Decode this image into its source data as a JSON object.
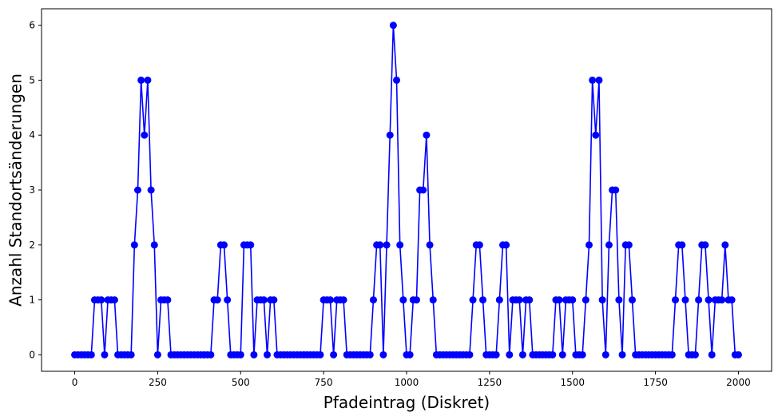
{
  "chart_data": {
    "type": "line",
    "x_label": "Pfadeintrag (Diskret)",
    "y_label": "Anzahl Standortsänderungen",
    "x": [
      0,
      10,
      20,
      30,
      40,
      50,
      60,
      70,
      80,
      90,
      100,
      110,
      120,
      130,
      140,
      150,
      160,
      170,
      180,
      190,
      200,
      210,
      220,
      230,
      240,
      250,
      260,
      270,
      280,
      290,
      300,
      310,
      320,
      330,
      340,
      350,
      360,
      370,
      380,
      390,
      400,
      410,
      420,
      430,
      440,
      450,
      460,
      470,
      480,
      490,
      500,
      510,
      520,
      530,
      540,
      550,
      560,
      570,
      580,
      590,
      600,
      610,
      620,
      630,
      640,
      650,
      660,
      670,
      680,
      690,
      700,
      710,
      720,
      730,
      740,
      750,
      760,
      770,
      780,
      790,
      800,
      810,
      820,
      830,
      840,
      850,
      860,
      870,
      880,
      890,
      900,
      910,
      920,
      930,
      940,
      950,
      960,
      970,
      980,
      990,
      1000,
      1010,
      1020,
      1030,
      1040,
      1050,
      1060,
      1070,
      1080,
      1090,
      1100,
      1110,
      1120,
      1130,
      1140,
      1150,
      1160,
      1170,
      1180,
      1190,
      1200,
      1210,
      1220,
      1230,
      1240,
      1250,
      1260,
      1270,
      1280,
      1290,
      1300,
      1310,
      1320,
      1330,
      1340,
      1350,
      1360,
      1370,
      1380,
      1390,
      1400,
      1410,
      1420,
      1430,
      1440,
      1450,
      1460,
      1470,
      1480,
      1490,
      1500,
      1510,
      1520,
      1530,
      1540,
      1550,
      1560,
      1570,
      1580,
      1590,
      1600,
      1610,
      1620,
      1630,
      1640,
      1650,
      1660,
      1670,
      1680,
      1690,
      1700,
      1710,
      1720,
      1730,
      1740,
      1750,
      1760,
      1770,
      1780,
      1790,
      1800,
      1810,
      1820,
      1830,
      1840,
      1850,
      1860,
      1870,
      1880,
      1890,
      1900,
      1910,
      1920,
      1930,
      1940,
      1950,
      1960,
      1970,
      1980,
      1990,
      2000
    ],
    "series": [
      {
        "color": "#0000ff",
        "values": [
          0,
          0,
          0,
          0,
          0,
          0,
          1,
          1,
          1,
          0,
          1,
          1,
          1,
          0,
          0,
          0,
          0,
          0,
          2,
          3,
          5,
          4,
          5,
          3,
          2,
          0,
          1,
          1,
          1,
          0,
          0,
          0,
          0,
          0,
          0,
          0,
          0,
          0,
          0,
          0,
          0,
          0,
          1,
          1,
          2,
          2,
          1,
          0,
          0,
          0,
          0,
          2,
          2,
          2,
          0,
          1,
          1,
          1,
          0,
          1,
          1,
          0,
          0,
          0,
          0,
          0,
          0,
          0,
          0,
          0,
          0,
          0,
          0,
          0,
          0,
          1,
          1,
          1,
          0,
          1,
          1,
          1,
          0,
          0,
          0,
          0,
          0,
          0,
          0,
          0,
          1,
          2,
          2,
          0,
          2,
          4,
          6,
          5,
          2,
          1,
          0,
          0,
          1,
          1,
          3,
          3,
          4,
          2,
          1,
          0,
          0,
          0,
          0,
          0,
          0,
          0,
          0,
          0,
          0,
          0,
          1,
          2,
          2,
          1,
          0,
          0,
          0,
          0,
          1,
          2,
          2,
          0,
          1,
          1,
          1,
          0,
          1,
          1,
          0,
          0,
          0,
          0,
          0,
          0,
          0,
          1,
          1,
          0,
          1,
          1,
          1,
          0,
          0,
          0,
          1,
          2,
          5,
          4,
          5,
          1,
          0,
          2,
          3,
          3,
          1,
          0,
          2,
          2,
          1,
          0,
          0,
          0,
          0,
          0,
          0,
          0,
          0,
          0,
          0,
          0,
          0,
          1,
          2,
          2,
          1,
          0,
          0,
          0,
          1,
          2,
          2,
          1,
          0,
          1,
          1,
          1,
          2,
          1,
          1,
          0,
          0
        ]
      }
    ],
    "xlim": [
      -100,
      2100
    ],
    "ylim": [
      -0.3,
      6.3
    ],
    "xticks": [
      0,
      250,
      500,
      750,
      1000,
      1250,
      1500,
      1750,
      2000
    ],
    "yticks": [
      0,
      1,
      2,
      3,
      4,
      5,
      6
    ],
    "markers": true,
    "grid": false
  }
}
